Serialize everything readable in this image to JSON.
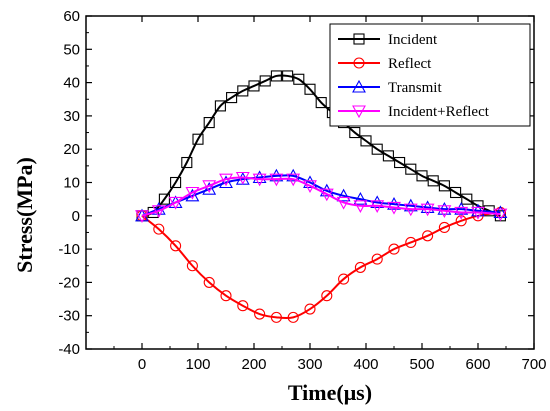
{
  "chart_data": {
    "type": "line",
    "xlabel": "Time(μs)",
    "ylabel": "Stress(MPa)",
    "xlim": [
      -100,
      700
    ],
    "ylim": [
      -40,
      60
    ],
    "xticks": [
      0,
      100,
      200,
      300,
      400,
      500,
      600,
      700
    ],
    "yticks": [
      -40,
      -30,
      -20,
      -10,
      0,
      10,
      20,
      30,
      40,
      50,
      60
    ],
    "grid": false,
    "legend_position": "top-right",
    "series": [
      {
        "name": "Incident",
        "color": "#000000",
        "marker": "square",
        "points": [
          [
            0,
            0
          ],
          [
            20,
            1
          ],
          [
            40,
            5
          ],
          [
            60,
            10
          ],
          [
            80,
            16
          ],
          [
            100,
            23
          ],
          [
            120,
            28
          ],
          [
            140,
            33
          ],
          [
            160,
            35.5
          ],
          [
            180,
            37.5
          ],
          [
            200,
            39
          ],
          [
            220,
            40.5
          ],
          [
            240,
            42
          ],
          [
            260,
            42
          ],
          [
            280,
            41
          ],
          [
            300,
            38
          ],
          [
            320,
            34
          ],
          [
            340,
            31
          ],
          [
            360,
            28
          ],
          [
            380,
            25
          ],
          [
            400,
            22.5
          ],
          [
            420,
            20
          ],
          [
            440,
            18
          ],
          [
            460,
            16
          ],
          [
            480,
            14
          ],
          [
            500,
            12
          ],
          [
            520,
            10.5
          ],
          [
            540,
            9
          ],
          [
            560,
            7
          ],
          [
            580,
            5
          ],
          [
            600,
            3
          ],
          [
            620,
            1.5
          ],
          [
            640,
            0
          ]
        ]
      },
      {
        "name": "Reflect",
        "color": "#ff0000",
        "marker": "circle",
        "points": [
          [
            0,
            0
          ],
          [
            30,
            -4
          ],
          [
            60,
            -9
          ],
          [
            90,
            -15
          ],
          [
            120,
            -20
          ],
          [
            150,
            -24
          ],
          [
            180,
            -27
          ],
          [
            210,
            -29.5
          ],
          [
            240,
            -30.5
          ],
          [
            270,
            -30.5
          ],
          [
            300,
            -28
          ],
          [
            330,
            -24
          ],
          [
            360,
            -19
          ],
          [
            390,
            -15.5
          ],
          [
            420,
            -13
          ],
          [
            450,
            -10
          ],
          [
            480,
            -8
          ],
          [
            510,
            -6
          ],
          [
            540,
            -3.5
          ],
          [
            570,
            -1.5
          ],
          [
            600,
            0
          ],
          [
            640,
            1
          ]
        ]
      },
      {
        "name": "Transmit",
        "color": "#0000ff",
        "marker": "triangle-up",
        "points": [
          [
            0,
            0
          ],
          [
            30,
            2
          ],
          [
            60,
            4
          ],
          [
            90,
            6
          ],
          [
            120,
            8
          ],
          [
            150,
            10
          ],
          [
            180,
            11
          ],
          [
            210,
            11.5
          ],
          [
            240,
            12
          ],
          [
            270,
            12
          ],
          [
            300,
            10
          ],
          [
            330,
            7.5
          ],
          [
            360,
            6
          ],
          [
            390,
            5
          ],
          [
            420,
            4
          ],
          [
            450,
            3.5
          ],
          [
            480,
            3
          ],
          [
            510,
            2.5
          ],
          [
            540,
            2
          ],
          [
            570,
            2
          ],
          [
            600,
            1.5
          ],
          [
            640,
            1
          ]
        ]
      },
      {
        "name": "Incident+Reflect",
        "color": "#ff00ff",
        "marker": "triangle-down",
        "points": [
          [
            0,
            0
          ],
          [
            30,
            1.5
          ],
          [
            60,
            4
          ],
          [
            90,
            7
          ],
          [
            120,
            9
          ],
          [
            150,
            11
          ],
          [
            180,
            11.5
          ],
          [
            210,
            11
          ],
          [
            240,
            11
          ],
          [
            270,
            11
          ],
          [
            300,
            9
          ],
          [
            330,
            6.5
          ],
          [
            360,
            4
          ],
          [
            390,
            3
          ],
          [
            420,
            3
          ],
          [
            450,
            2.5
          ],
          [
            480,
            2
          ],
          [
            510,
            2
          ],
          [
            540,
            1.5
          ],
          [
            570,
            1
          ],
          [
            600,
            1
          ],
          [
            640,
            0.5
          ]
        ]
      }
    ]
  }
}
